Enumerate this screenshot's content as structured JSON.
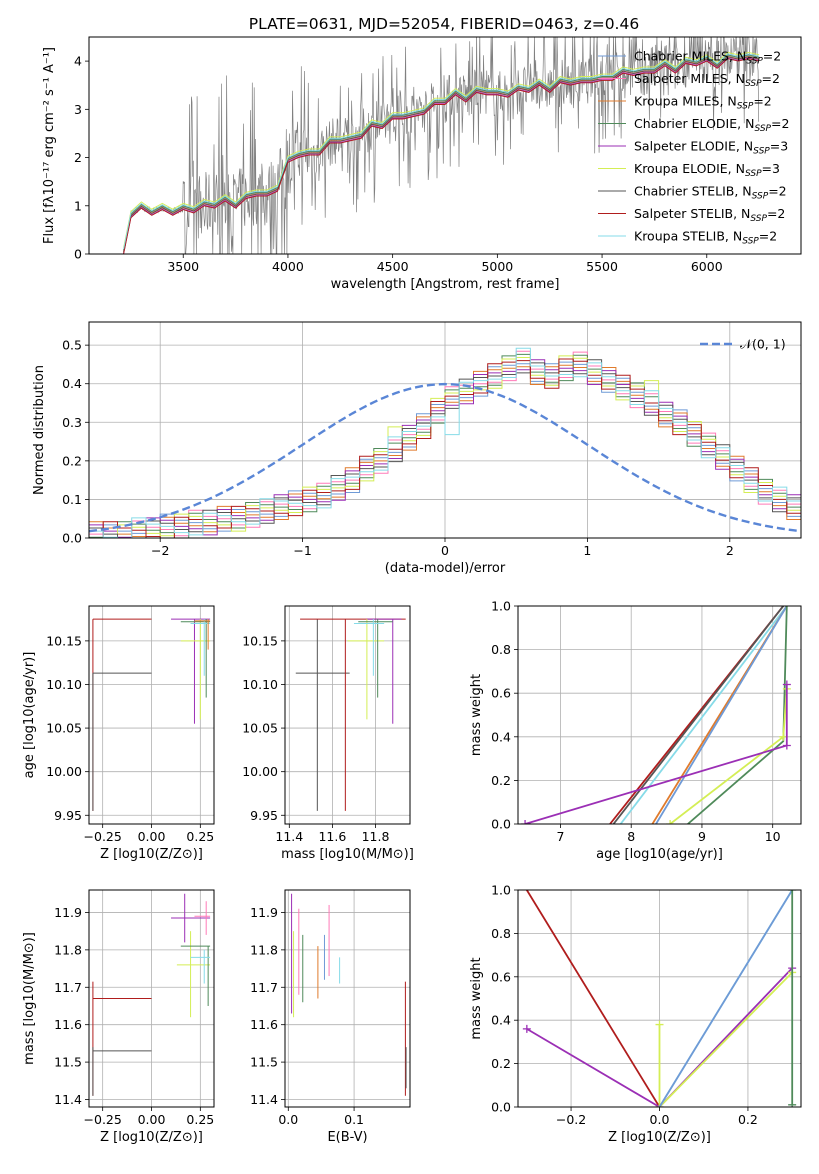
{
  "figure": {
    "title": "PLATE=0631, MJD=52054, FIBERID=0463, z=0.46"
  },
  "legend_entries": [
    {
      "label": "Chabrier MILES, N",
      "sub": "SSP",
      "tail": "=2",
      "color": "#6f9ad6"
    },
    {
      "label": "Salpeter MILES, N",
      "sub": "SSP",
      "tail": "=2",
      "color": "#ff7ab8"
    },
    {
      "label": "Kroupa MILES, N",
      "sub": "SSP",
      "tail": "=2",
      "color": "#e07b2c"
    },
    {
      "label": "Chabrier ELODIE, N",
      "sub": "SSP",
      "tail": "=2",
      "color": "#4f8a5a"
    },
    {
      "label": "Salpeter ELODIE, N",
      "sub": "SSP",
      "tail": "=3",
      "color": "#9b2fb5"
    },
    {
      "label": "Kroupa ELODIE, N",
      "sub": "SSP",
      "tail": "=3",
      "color": "#d4ee55"
    },
    {
      "label": "Chabrier STELIB, N",
      "sub": "SSP",
      "tail": "=2",
      "color": "#555555"
    },
    {
      "label": "Salpeter STELIB, N",
      "sub": "SSP",
      "tail": "=2",
      "color": "#b01d1d"
    },
    {
      "label": "Kroupa STELIB, N",
      "sub": "SSP",
      "tail": "=2",
      "color": "#86dbe8"
    }
  ],
  "chart_data": [
    {
      "id": "spectrum",
      "type": "line",
      "xlabel": "wavelength [Angstrom, rest frame]",
      "ylabel": "Flux [f",
      "ylabel_full": "Flux [fλ10⁻¹⁷ erg cm⁻² s⁻¹ A⁻¹]",
      "xlim": [
        3050,
        6450
      ],
      "ylim": [
        0,
        4.5
      ],
      "xticks": [
        3500,
        4000,
        4500,
        5000,
        5500,
        6000
      ],
      "yticks": [
        0,
        1,
        2,
        3,
        4
      ],
      "data_color": "#808080",
      "model_x": [
        3215,
        3250,
        3300,
        3350,
        3400,
        3450,
        3500,
        3550,
        3600,
        3650,
        3700,
        3750,
        3800,
        3850,
        3900,
        3950,
        4000,
        4050,
        4100,
        4150,
        4200,
        4250,
        4300,
        4350,
        4400,
        4450,
        4500,
        4550,
        4600,
        4650,
        4700,
        4750,
        4800,
        4850,
        4900,
        4950,
        5000,
        5050,
        5100,
        5150,
        5200,
        5250,
        5300,
        5350,
        5400,
        5450,
        5500,
        5550,
        5600,
        5650,
        5700,
        5750,
        5800,
        5850,
        5900,
        5950,
        6000,
        6050,
        6100,
        6150,
        6200,
        6250
      ],
      "model_y": [
        0.0,
        0.85,
        0.95,
        0.9,
        0.92,
        0.9,
        0.92,
        0.95,
        1.0,
        1.05,
        1.1,
        1.05,
        1.15,
        1.3,
        1.2,
        1.4,
        1.9,
        2.1,
        2.05,
        2.15,
        2.3,
        2.4,
        2.35,
        2.5,
        2.65,
        2.7,
        2.8,
        2.9,
        2.85,
        3.0,
        3.1,
        3.2,
        3.3,
        3.25,
        3.35,
        3.4,
        3.3,
        3.35,
        3.4,
        3.45,
        3.5,
        3.45,
        3.55,
        3.6,
        3.55,
        3.65,
        3.6,
        3.7,
        3.75,
        3.8,
        3.75,
        3.85,
        3.9,
        3.85,
        3.95,
        4.0,
        4.0,
        3.95,
        4.05,
        4.1,
        4.05,
        4.1
      ],
      "series_names": [
        "Chabrier MILES, NSSP=2",
        "Salpeter MILES, NSSP=2",
        "Kroupa MILES, NSSP=2",
        "Chabrier ELODIE, NSSP=2",
        "Salpeter ELODIE, NSSP=3",
        "Kroupa ELODIE, NSSP=3",
        "Chabrier STELIB, NSSP=2",
        "Salpeter STELIB, NSSP=2",
        "Kroupa STELIB, NSSP=2"
      ]
    },
    {
      "id": "residuals",
      "type": "line",
      "xlabel": "(data-model)/error",
      "ylabel": "Normed distribution",
      "xlim": [
        -2.5,
        2.5
      ],
      "ylim": [
        0,
        0.56
      ],
      "xticks": [
        -2,
        -1,
        0,
        1,
        2
      ],
      "yticks": [
        0.0,
        0.1,
        0.2,
        0.3,
        0.4,
        0.5
      ],
      "gaussian_label": "𝒩(0, 1)",
      "gaussian_color": "#5a86d6",
      "bin_width": 0.1,
      "bin_start": -2.5,
      "hist_values": [
        0.01,
        0.01,
        0.01,
        0.02,
        0.02,
        0.03,
        0.03,
        0.04,
        0.04,
        0.05,
        0.05,
        0.06,
        0.07,
        0.08,
        0.09,
        0.1,
        0.11,
        0.13,
        0.15,
        0.18,
        0.2,
        0.23,
        0.26,
        0.29,
        0.33,
        0.36,
        0.38,
        0.4,
        0.42,
        0.44,
        0.46,
        0.43,
        0.42,
        0.44,
        0.45,
        0.43,
        0.41,
        0.39,
        0.37,
        0.35,
        0.32,
        0.3,
        0.27,
        0.24,
        0.21,
        0.18,
        0.15,
        0.12,
        0.1,
        0.08
      ]
    },
    {
      "id": "age-vs-Z",
      "type": "scatter",
      "xlabel": "Z [log10(Z/Z⊙)]",
      "ylabel": "age [log10(age/yr)]",
      "xlim": [
        -0.32,
        0.32
      ],
      "ylim": [
        9.94,
        10.19
      ],
      "xticks": [
        -0.25,
        0.0,
        0.25
      ],
      "yticks": [
        9.95,
        10.0,
        10.05,
        10.1,
        10.15
      ]
    },
    {
      "id": "age-vs-mass",
      "type": "scatter",
      "xlabel": "mass [log10(M/M⊙)]",
      "xlim": [
        11.38,
        11.96
      ],
      "ylim": [
        9.94,
        10.19
      ],
      "xticks": [
        11.4,
        11.6,
        11.8
      ],
      "yticks": [
        9.95,
        10.0,
        10.05,
        10.1,
        10.15
      ]
    },
    {
      "id": "massweight-vs-age",
      "type": "line",
      "xlabel": "age [log10(age/yr)]",
      "ylabel": "mass weight",
      "xlim": [
        6.4,
        10.4
      ],
      "ylim": [
        0,
        1.0
      ],
      "xticks": [
        7,
        8,
        9,
        10
      ],
      "yticks": [
        0.0,
        0.2,
        0.4,
        0.6,
        0.8,
        1.0
      ]
    },
    {
      "id": "mass-vs-Z",
      "type": "scatter",
      "xlabel": "Z [log10(Z/Z⊙)]",
      "ylabel": "mass [log10(M/M⊙)]",
      "xlim": [
        -0.32,
        0.32
      ],
      "ylim": [
        11.38,
        11.96
      ],
      "xticks": [
        -0.25,
        0.0,
        0.25
      ],
      "yticks": [
        11.4,
        11.5,
        11.6,
        11.7,
        11.8,
        11.9
      ]
    },
    {
      "id": "mass-vs-EBV",
      "type": "scatter",
      "xlabel": "E(B-V)",
      "xlim": [
        -0.005,
        0.185
      ],
      "ylim": [
        11.38,
        11.96
      ],
      "xticks": [
        0.0,
        0.1
      ],
      "yticks": [
        11.4,
        11.5,
        11.6,
        11.7,
        11.8,
        11.9
      ]
    },
    {
      "id": "massweight-vs-Z",
      "type": "line",
      "xlabel": "Z [log10(Z/Z⊙)]",
      "ylabel": "mass weight",
      "xlim": [
        -0.32,
        0.32
      ],
      "ylim": [
        0,
        1.0
      ],
      "xticks": [
        -0.2,
        0.0,
        0.2
      ],
      "yticks": [
        0.0,
        0.2,
        0.4,
        0.6,
        0.8,
        1.0
      ]
    }
  ]
}
